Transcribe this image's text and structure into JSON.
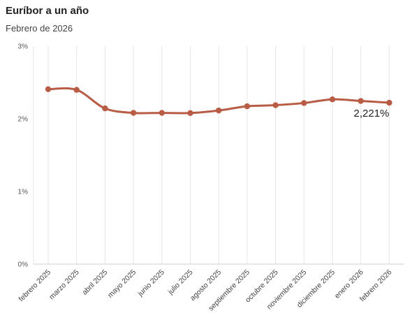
{
  "header": {
    "title": "Euríbor a un año",
    "subtitle": "Febrero de 2026"
  },
  "chart_data": {
    "type": "line",
    "title": "Euríbor a un año",
    "subtitle": "Febrero de 2026",
    "xlabel": "",
    "ylabel": "",
    "categories": [
      "febrero 2025",
      "marzo 2025",
      "abril 2025",
      "mayo 2025",
      "junio 2025",
      "julio 2025",
      "agosto 2025",
      "septiembre 2025",
      "octubre 2025",
      "noviembre 2025",
      "diciembre 2025",
      "enero 2026",
      "febrero 2026"
    ],
    "series": [
      {
        "name": "",
        "values": [
          2.407,
          2.398,
          2.143,
          2.081,
          2.081,
          2.079,
          2.114,
          2.172,
          2.187,
          2.217,
          2.267,
          2.245,
          2.221
        ]
      }
    ],
    "ylim": [
      0,
      3
    ],
    "yticks": [
      0,
      1,
      2,
      3
    ],
    "ytick_labels": [
      "0%",
      "1%",
      "2%",
      "3%"
    ],
    "grid": true,
    "line_color": "#b85c45",
    "grid_color": "#e6e6e6",
    "annotation": {
      "category": "febrero 2026",
      "text": "2,221%"
    }
  }
}
